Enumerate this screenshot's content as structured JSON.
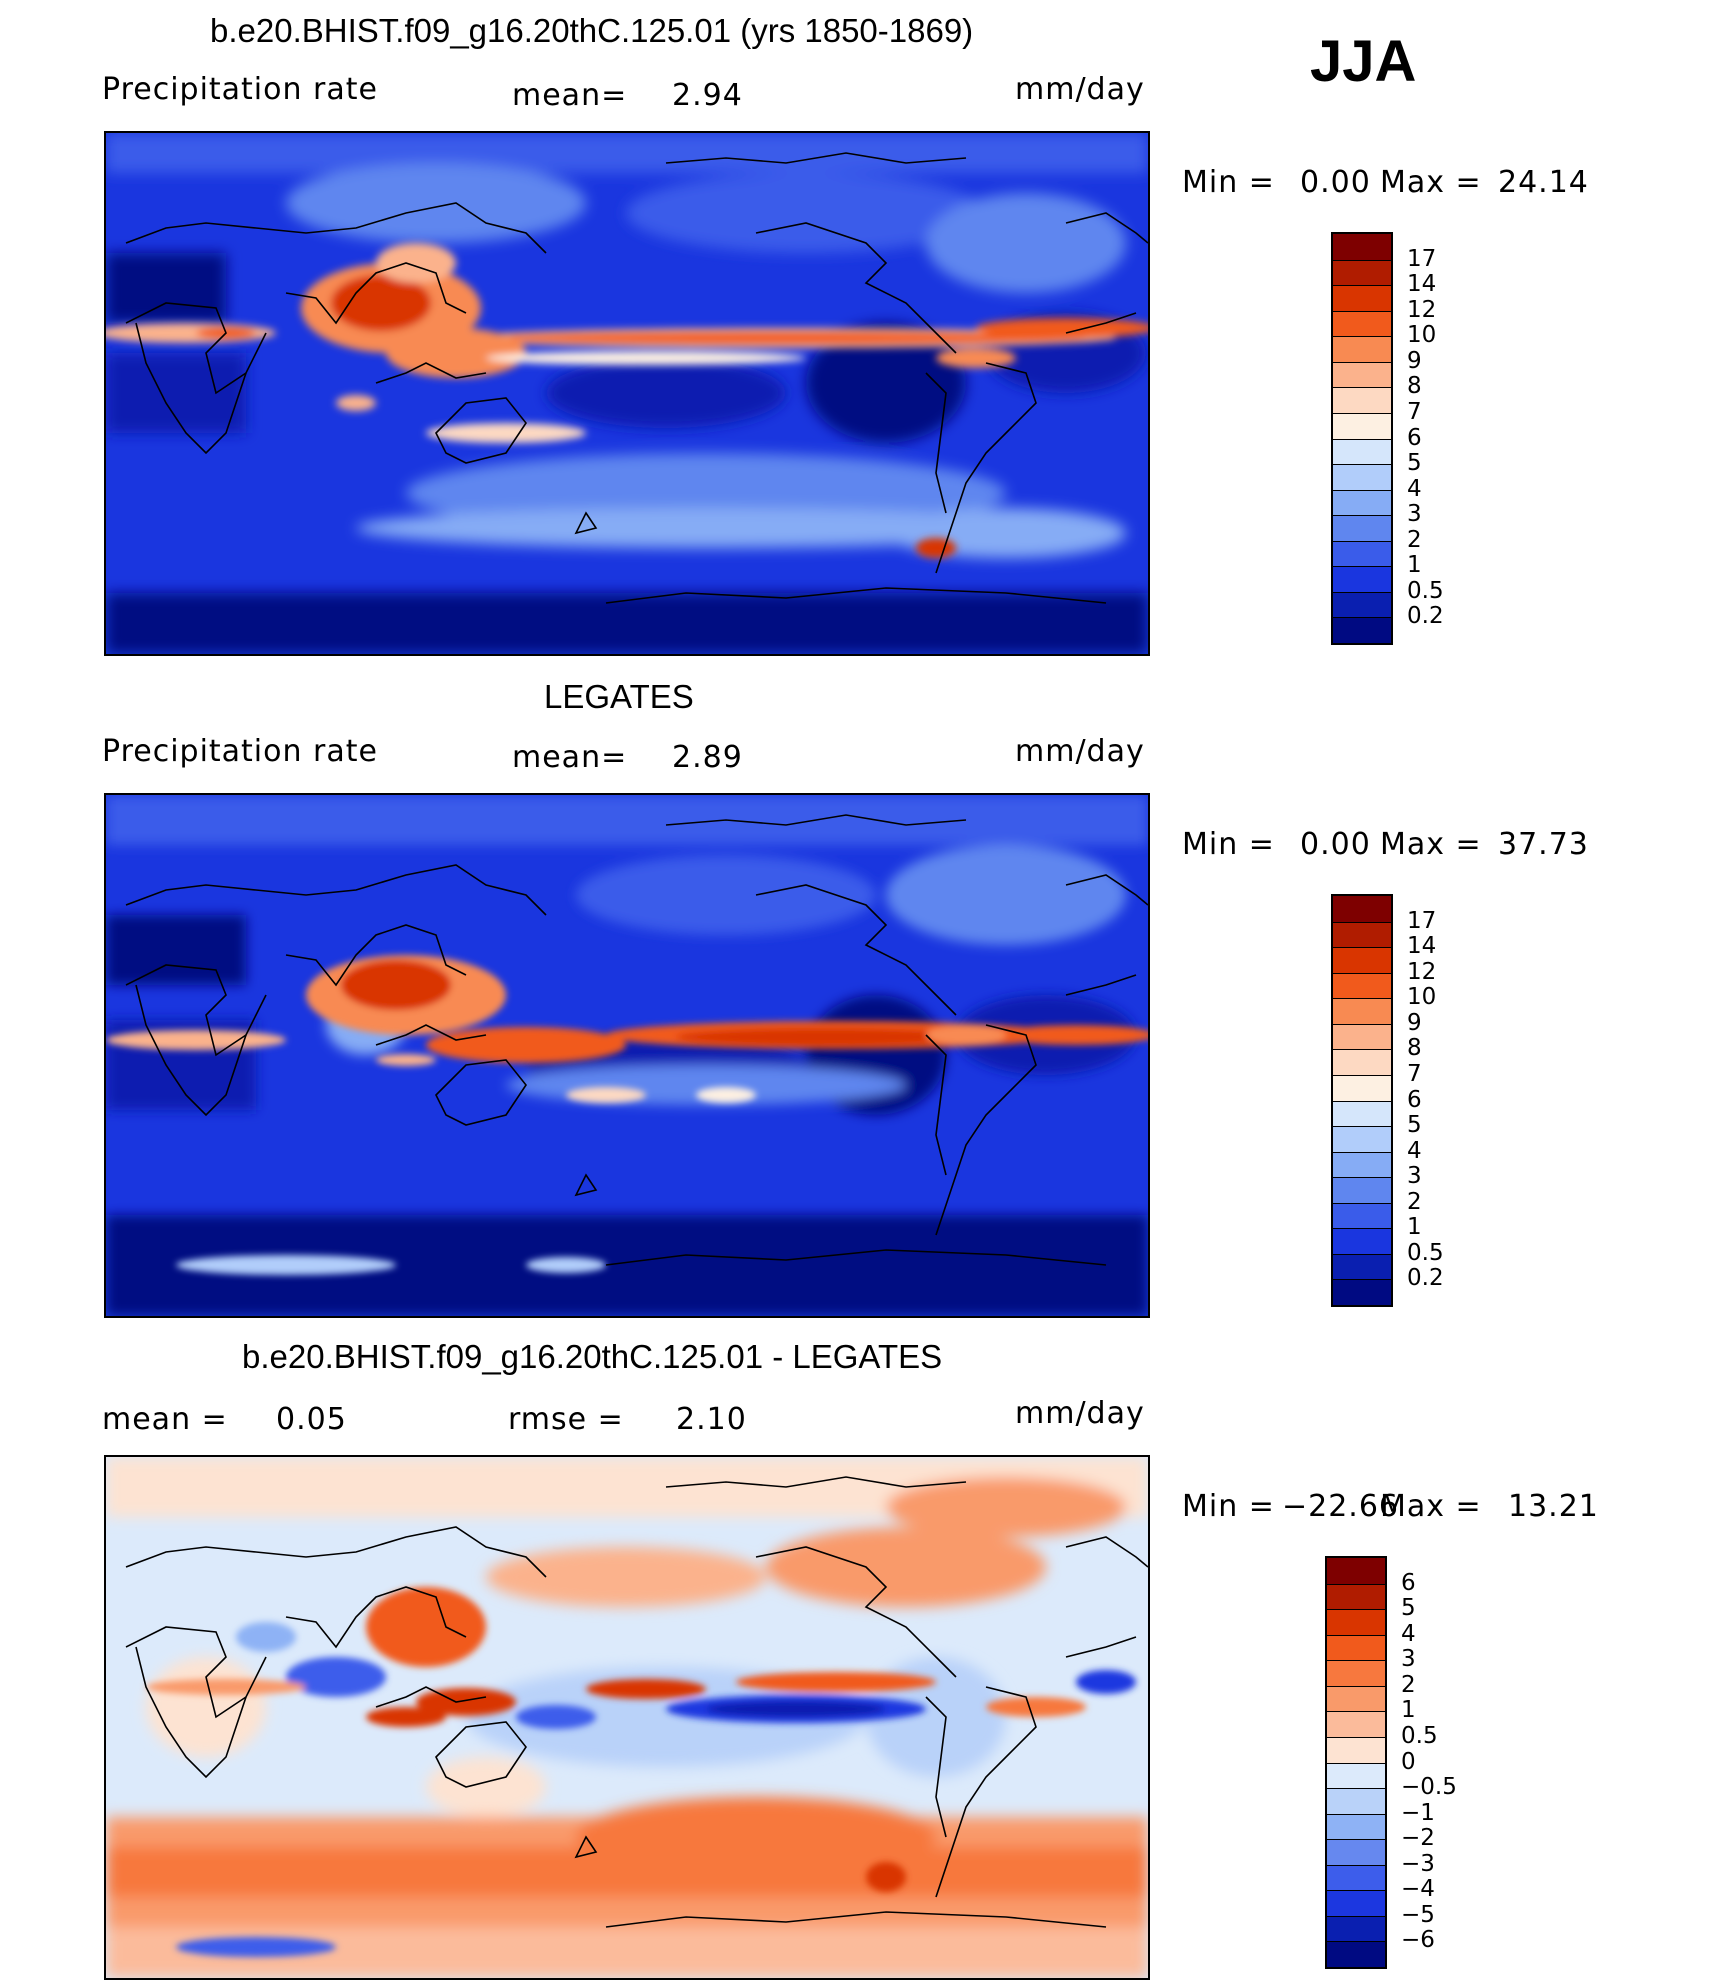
{
  "season": "JJA",
  "units": "mm/day",
  "panels": [
    {
      "title": "b.e20.BHIST.f09_g16.20thC.125.01 (yrs 1850-1869)",
      "left_label": "Precipitation  rate",
      "mid_label": "mean=",
      "mid_value": "2.94",
      "right_label": "mm/day",
      "min_label": "Min  =",
      "min_value": "0.00",
      "max_label": "Max  =",
      "max_value": "24.14",
      "colorbar": {
        "labels": [
          "17",
          "14",
          "12",
          "10",
          "9",
          "8",
          "7",
          "6",
          "5",
          "4",
          "3",
          "2",
          "1",
          "0.5",
          "0.2"
        ],
        "colors": [
          "#7e0000",
          "#b01c00",
          "#d93500",
          "#f15a1c",
          "#f88a52",
          "#fbb28c",
          "#fdd9c2",
          "#fdf0e2",
          "#d5e6fb",
          "#b1cdfa",
          "#86acf5",
          "#5f86ef",
          "#3a5cea",
          "#1a36df",
          "#0a1fb0",
          "#000a82"
        ]
      }
    },
    {
      "title": "LEGATES",
      "left_label": "Precipitation  rate",
      "mid_label": "mean=",
      "mid_value": "2.89",
      "right_label": "mm/day",
      "min_label": "Min  =",
      "min_value": "0.00",
      "max_label": "Max  =",
      "max_value": "37.73",
      "colorbar": {
        "labels": [
          "17",
          "14",
          "12",
          "10",
          "9",
          "8",
          "7",
          "6",
          "5",
          "4",
          "3",
          "2",
          "1",
          "0.5",
          "0.2"
        ],
        "colors": [
          "#7e0000",
          "#b01c00",
          "#d93500",
          "#f15a1c",
          "#f88a52",
          "#fbb28c",
          "#fdd9c2",
          "#fdf0e2",
          "#d5e6fb",
          "#b1cdfa",
          "#86acf5",
          "#5f86ef",
          "#3a5cea",
          "#1a36df",
          "#0a1fb0",
          "#000a82"
        ]
      }
    },
    {
      "title": "b.e20.BHIST.f09_g16.20thC.125.01 - LEGATES",
      "left_label": "mean  =",
      "left_value": "0.05",
      "mid_label": "rmse  =",
      "mid_value": "2.10",
      "right_label": "mm/day",
      "min_label": "Min  =",
      "min_value": "−22.66",
      "max_label": "Max  =",
      "max_value": "13.21",
      "colorbar": {
        "labels": [
          "6",
          "5",
          "4",
          "3",
          "2",
          "1",
          "0.5",
          "0",
          "−0.5",
          "−1",
          "−2",
          "−3",
          "−4",
          "−5",
          "−6"
        ],
        "colors": [
          "#7e0000",
          "#b01c00",
          "#d93500",
          "#f15a1c",
          "#f7783e",
          "#f99a6a",
          "#fbbb9b",
          "#fde3d2",
          "#dceafb",
          "#b9d2f9",
          "#8eb2f5",
          "#6688ef",
          "#3d5deb",
          "#1c37e0",
          "#0a1fb0",
          "#000a82"
        ]
      }
    }
  ]
}
